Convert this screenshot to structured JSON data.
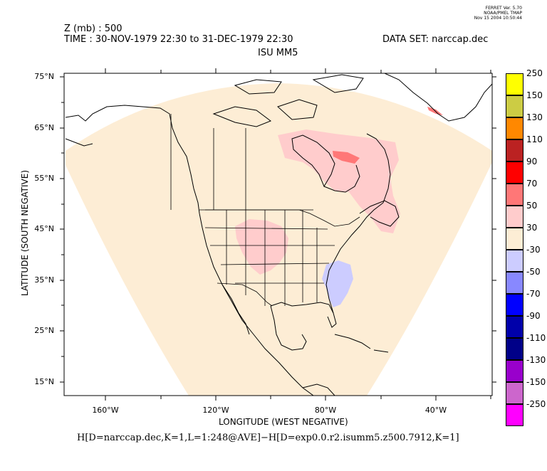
{
  "ferret_stamp": {
    "line1": "FERRET Ver. 5.70",
    "line2": "NOAA/PMEL TMAP",
    "line3": "Nov 15 2004 10:50:44"
  },
  "header": {
    "variable": "Z (mb) : 500",
    "time": "TIME : 30-NOV-1979 22:30 to 31-DEC-1979 22:30",
    "dataset": "DATA SET: narccap.dec",
    "subtitle": "ISU MM5"
  },
  "axes": {
    "xlabel": "LONGITUDE (WEST NEGATIVE)",
    "ylabel": "LATITUDE (SOUTH NEGATIVE)",
    "x_ticks": [
      "160°W",
      "120°W",
      "80°W",
      "40°W"
    ],
    "y_ticks": [
      "75°N",
      "65°N",
      "55°N",
      "45°N",
      "35°N",
      "25°N",
      "15°N"
    ],
    "x_range": [
      -175,
      -20
    ],
    "y_range": [
      12,
      76
    ]
  },
  "colorbar": {
    "labels": [
      "250",
      "150",
      "130",
      "110",
      "90",
      "70",
      "50",
      "30",
      "-30",
      "-50",
      "-70",
      "-90",
      "-110",
      "-130",
      "-150",
      "-250"
    ],
    "colors": [
      "#ffff00",
      "#cccc44",
      "#ff8800",
      "#bb2222",
      "#ff0000",
      "#ff7777",
      "#ffcccc",
      "#fdedd5",
      "#ccccff",
      "#8888ff",
      "#0000ff",
      "#0000aa",
      "#000088",
      "#9900cc",
      "#cc66cc",
      "#ff00ff"
    ]
  },
  "formula": "H[D=narccap.dec,K=1,L=1:248@AVE]−H[D=exp0.0.r2.isumm5.z500.7912,K=1]",
  "map": {
    "domain_fill": "#fdedd5",
    "positive_fill": "#ffcccc",
    "strong_positive_fill": "#ff7777",
    "negative_fill": "#ccccff"
  }
}
